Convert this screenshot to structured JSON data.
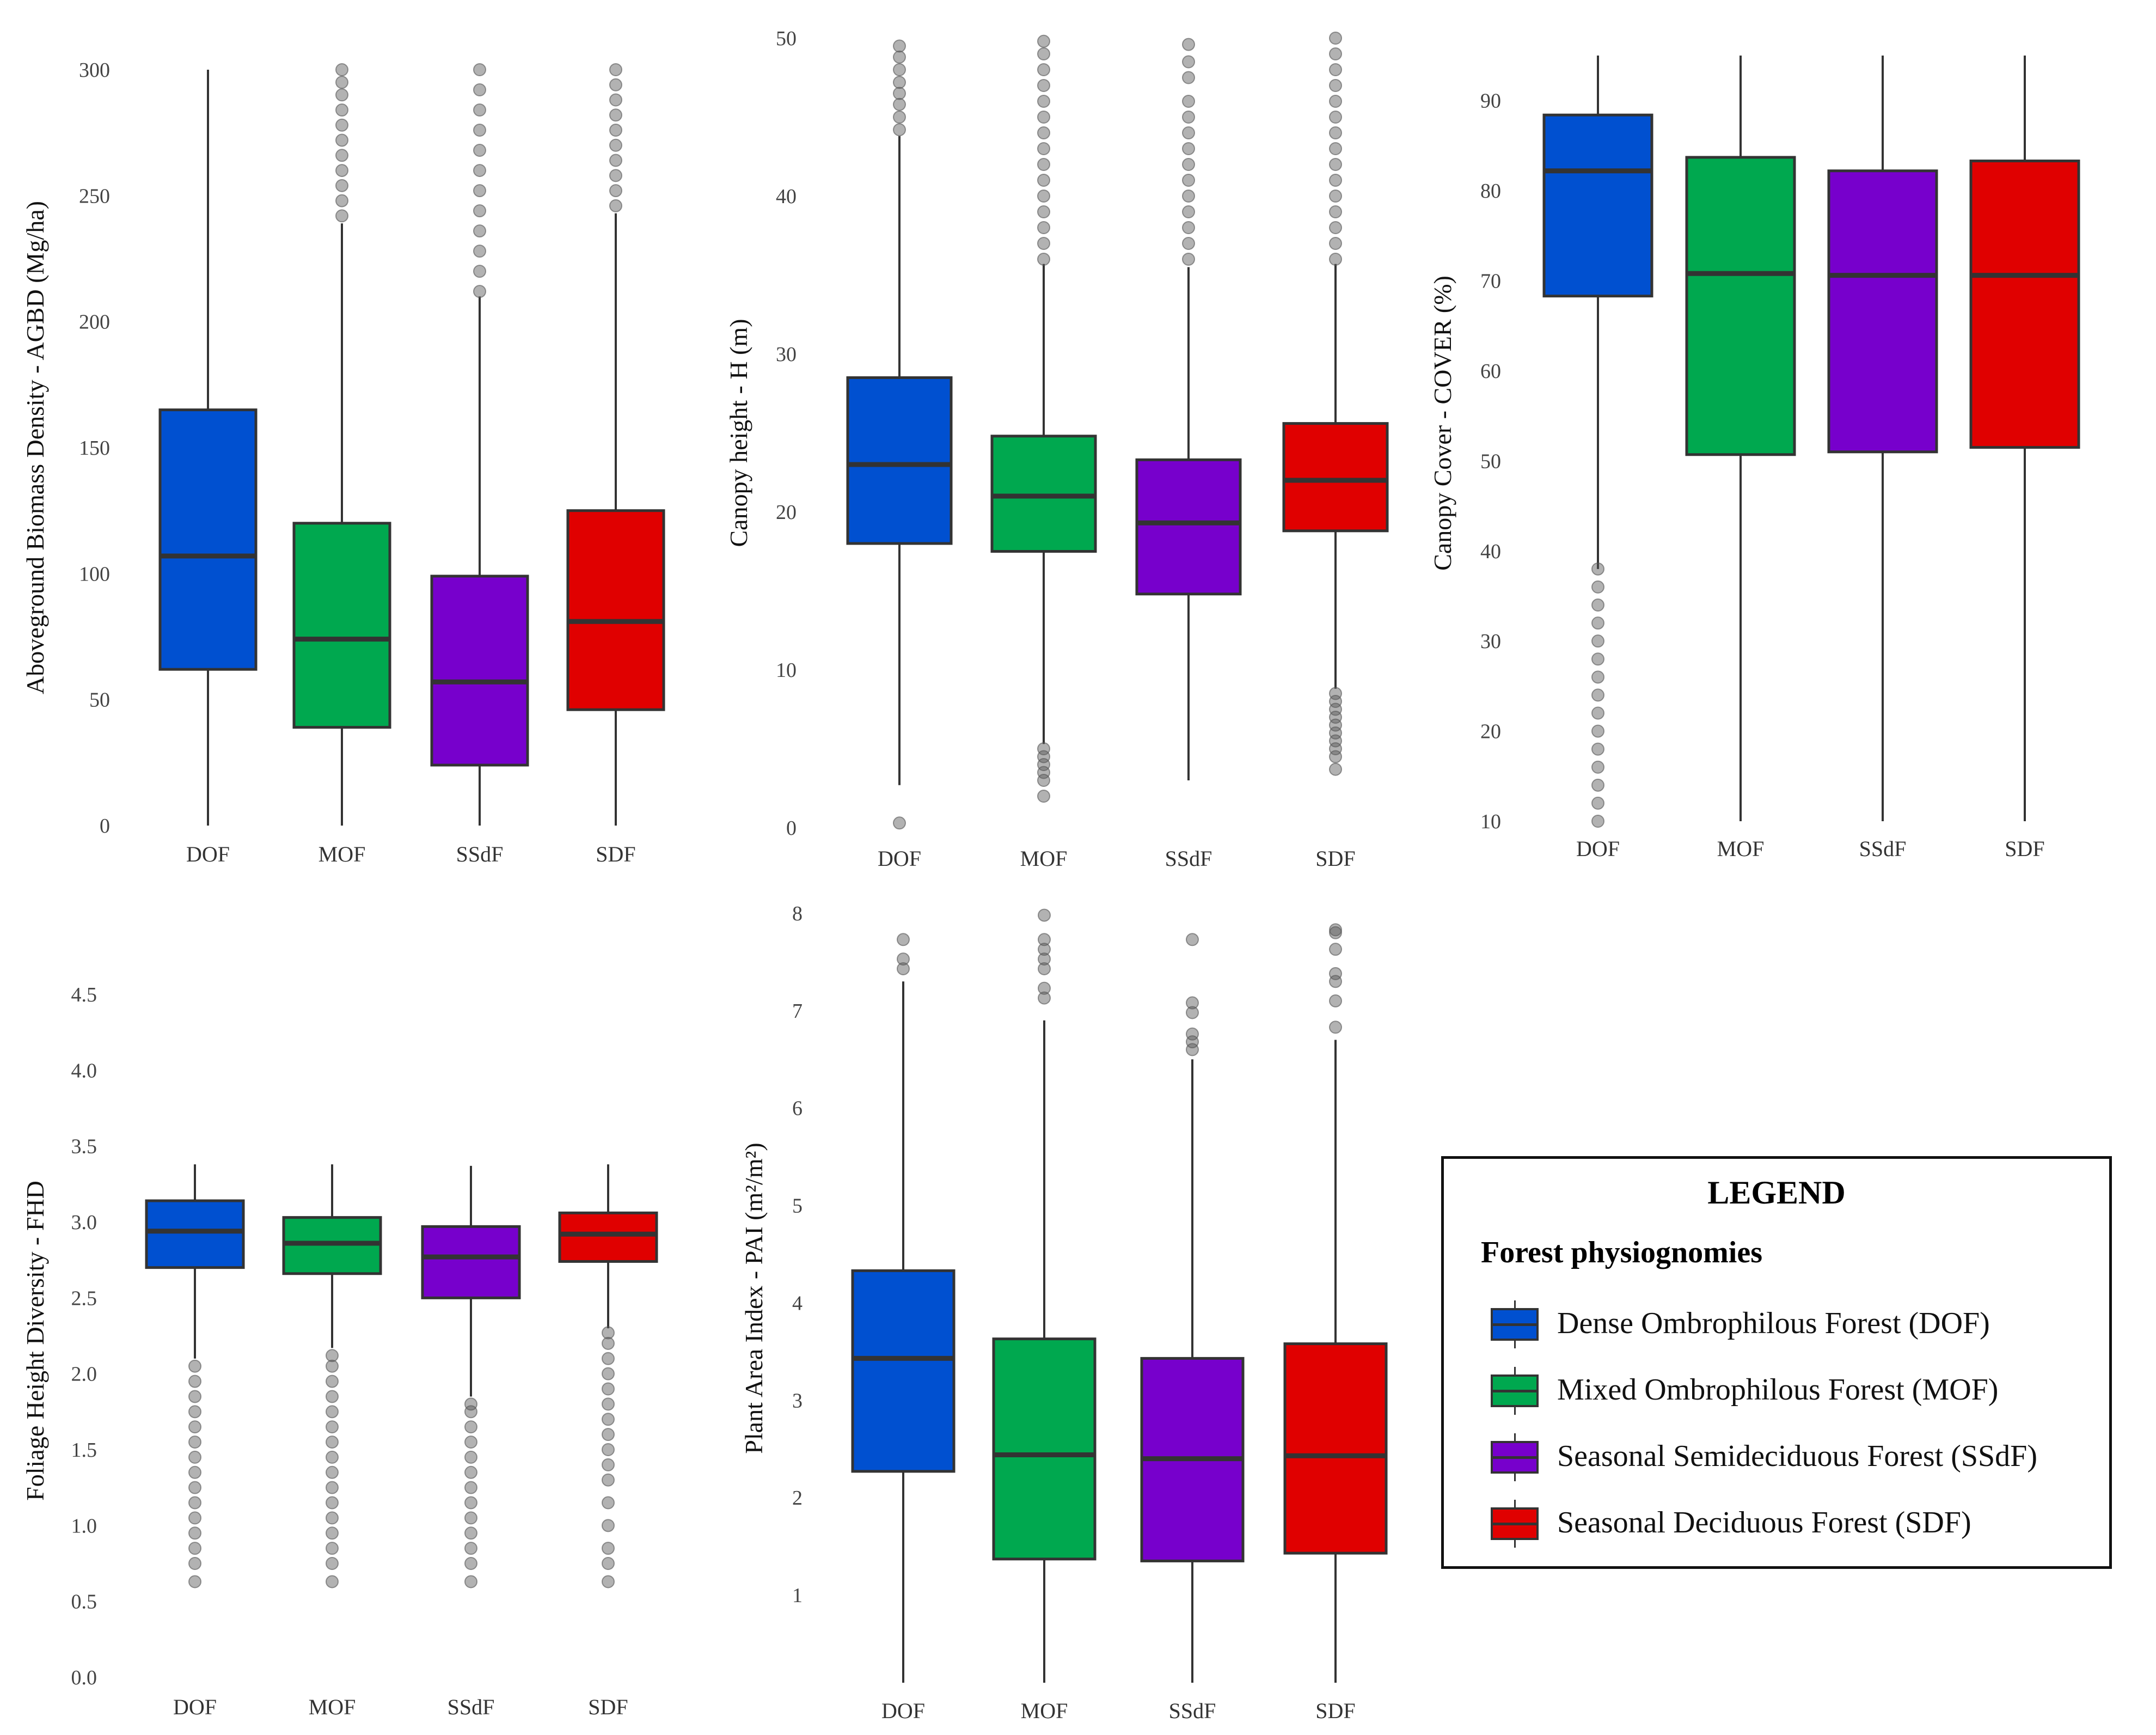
{
  "colors": {
    "DOF": "#0050d0",
    "MOF": "#00a84f",
    "SSdF": "#7700cc",
    "SDF": "#e00000",
    "outline": "#333333",
    "outlier": "#555555"
  },
  "chart_data": [
    {
      "type": "box",
      "ylabel": "Aboveground Biomass Density - AGBD (Mg/ha)",
      "xlabel": "",
      "categories": [
        "DOF",
        "MOF",
        "SSdF",
        "SDF"
      ],
      "yticks": [
        0,
        50,
        100,
        150,
        200,
        250,
        300
      ],
      "ylim": [
        0,
        300
      ],
      "boxes": [
        {
          "name": "DOF",
          "whisker_low": 0,
          "q1": 62,
          "median": 107,
          "q3": 165,
          "whisker_high": 300,
          "outliers": []
        },
        {
          "name": "MOF",
          "whisker_low": 0,
          "q1": 39,
          "median": 74,
          "q3": 120,
          "whisker_high": 239,
          "outliers": [
            242,
            248,
            254,
            260,
            266,
            272,
            278,
            284,
            290,
            295,
            300
          ]
        },
        {
          "name": "SSdF",
          "whisker_low": 0,
          "q1": 24,
          "median": 57,
          "q3": 99,
          "whisker_high": 210,
          "outliers": [
            212,
            220,
            228,
            236,
            244,
            252,
            260,
            268,
            276,
            284,
            292,
            300
          ]
        },
        {
          "name": "SDF",
          "whisker_low": 0,
          "q1": 46,
          "median": 81,
          "q3": 125,
          "whisker_high": 243,
          "outliers": [
            246,
            252,
            258,
            264,
            270,
            276,
            282,
            288,
            294,
            300
          ]
        }
      ]
    },
    {
      "type": "box",
      "ylabel": "Canopy height - H (m)",
      "xlabel": "",
      "categories": [
        "DOF",
        "MOF",
        "SSdF",
        "SDF"
      ],
      "yticks": [
        0,
        10,
        20,
        30,
        40,
        50
      ],
      "ylim": [
        0,
        50
      ],
      "boxes": [
        {
          "name": "DOF",
          "whisker_low": 2.7,
          "q1": 18.0,
          "median": 23.0,
          "q3": 28.5,
          "whisker_high": 43.8,
          "outliers": [
            0.3,
            44.2,
            45.0,
            45.8,
            46.5,
            47.2,
            48.0,
            48.8,
            49.5
          ]
        },
        {
          "name": "MOF",
          "whisker_low": 5.3,
          "q1": 17.5,
          "median": 21.0,
          "q3": 24.8,
          "whisker_high": 35.7,
          "outliers": [
            2.0,
            3.0,
            3.5,
            4.0,
            4.5,
            5.0,
            36.0,
            37.0,
            38.0,
            39.0,
            40.0,
            41.0,
            42.0,
            43.0,
            44.0,
            45.0,
            46.0,
            47.0,
            48.0,
            49.0,
            49.8
          ]
        },
        {
          "name": "SSdF",
          "whisker_low": 3.0,
          "q1": 14.8,
          "median": 19.3,
          "q3": 23.3,
          "whisker_high": 35.5,
          "outliers": [
            36.0,
            37.0,
            38.0,
            39.0,
            40.0,
            41.0,
            42.0,
            43.0,
            44.0,
            45.0,
            46.0,
            47.5,
            48.5,
            49.6
          ]
        },
        {
          "name": "SDF",
          "whisker_low": 8.8,
          "q1": 18.8,
          "median": 22.0,
          "q3": 25.6,
          "whisker_high": 35.7,
          "outliers": [
            3.7,
            4.5,
            5.0,
            5.5,
            6.0,
            6.5,
            7.0,
            7.5,
            8.0,
            8.5,
            36.0,
            37.0,
            38.0,
            39.0,
            40.0,
            41.0,
            42.0,
            43.0,
            44.0,
            45.0,
            46.0,
            47.0,
            48.0,
            49.0,
            50.0
          ]
        }
      ]
    },
    {
      "type": "box",
      "ylabel": "Canopy Cover - COVER (%)",
      "xlabel": "",
      "categories": [
        "DOF",
        "MOF",
        "SSdF",
        "SDF"
      ],
      "yticks": [
        10,
        20,
        30,
        40,
        50,
        60,
        70,
        80,
        90
      ],
      "ylim": [
        10,
        95
      ],
      "boxes": [
        {
          "name": "DOF",
          "whisker_low": 38,
          "q1": 68.3,
          "median": 82.2,
          "q3": 88.4,
          "whisker_high": 95,
          "outliers": [
            10,
            12,
            14,
            16,
            18,
            20,
            22,
            24,
            26,
            28,
            30,
            32,
            34,
            36,
            38
          ]
        },
        {
          "name": "MOF",
          "whisker_low": 10,
          "q1": 50.7,
          "median": 70.8,
          "q3": 83.7,
          "whisker_high": 95,
          "outliers": []
        },
        {
          "name": "SSdF",
          "whisker_low": 10,
          "q1": 51.0,
          "median": 70.6,
          "q3": 82.2,
          "whisker_high": 95,
          "outliers": []
        },
        {
          "name": "SDF",
          "whisker_low": 10,
          "q1": 51.5,
          "median": 70.6,
          "q3": 83.3,
          "whisker_high": 95,
          "outliers": []
        }
      ]
    },
    {
      "type": "box",
      "ylabel": "Foliage Height Diversity - FHD",
      "xlabel": "",
      "categories": [
        "DOF",
        "MOF",
        "SSdF",
        "SDF"
      ],
      "yticks": [
        0.0,
        0.5,
        1.0,
        1.5,
        2.0,
        2.5,
        3.0,
        3.5,
        4.0,
        4.5
      ],
      "ylim": [
        0,
        4.5
      ],
      "boxes": [
        {
          "name": "DOF",
          "whisker_low": 2.1,
          "q1": 2.7,
          "median": 2.94,
          "q3": 3.14,
          "whisker_high": 3.38,
          "outliers": [
            0.63,
            0.75,
            0.85,
            0.95,
            1.05,
            1.15,
            1.25,
            1.35,
            1.45,
            1.55,
            1.65,
            1.75,
            1.85,
            1.95,
            2.05
          ]
        },
        {
          "name": "MOF",
          "whisker_low": 2.17,
          "q1": 2.66,
          "median": 2.86,
          "q3": 3.03,
          "whisker_high": 3.38,
          "outliers": [
            0.63,
            0.75,
            0.85,
            0.95,
            1.05,
            1.15,
            1.25,
            1.35,
            1.45,
            1.55,
            1.65,
            1.75,
            1.85,
            1.95,
            2.05,
            2.12
          ]
        },
        {
          "name": "SSdF",
          "whisker_low": 1.85,
          "q1": 2.5,
          "median": 2.77,
          "q3": 2.97,
          "whisker_high": 3.37,
          "outliers": [
            0.63,
            0.75,
            0.85,
            0.95,
            1.05,
            1.15,
            1.25,
            1.35,
            1.45,
            1.55,
            1.65,
            1.75,
            1.8
          ]
        },
        {
          "name": "SDF",
          "whisker_low": 2.3,
          "q1": 2.74,
          "median": 2.92,
          "q3": 3.06,
          "whisker_high": 3.38,
          "outliers": [
            0.63,
            0.75,
            0.85,
            1.0,
            1.15,
            1.3,
            1.4,
            1.5,
            1.6,
            1.7,
            1.8,
            1.9,
            2.0,
            2.1,
            2.2,
            2.27
          ]
        }
      ]
    },
    {
      "type": "box",
      "ylabel": "Plant Area Index - PAI (m²/m²)",
      "xlabel": "",
      "categories": [
        "DOF",
        "MOF",
        "SSdF",
        "SDF"
      ],
      "yticks": [
        1,
        2,
        3,
        4,
        5,
        6,
        7,
        8
      ],
      "ylim": [
        0.1,
        8
      ],
      "boxes": [
        {
          "name": "DOF",
          "whisker_low": 0.1,
          "q1": 2.27,
          "median": 3.43,
          "q3": 4.33,
          "whisker_high": 7.3,
          "outliers": [
            7.43,
            7.53,
            7.73
          ]
        },
        {
          "name": "MOF",
          "whisker_low": 0.1,
          "q1": 1.37,
          "median": 2.44,
          "q3": 3.63,
          "whisker_high": 6.9,
          "outliers": [
            7.13,
            7.23,
            7.43,
            7.53,
            7.63,
            7.73,
            7.98
          ]
        },
        {
          "name": "SSdF",
          "whisker_low": 0.1,
          "q1": 1.35,
          "median": 2.4,
          "q3": 3.43,
          "whisker_high": 6.5,
          "outliers": [
            6.6,
            6.68,
            6.76,
            6.98,
            7.08,
            7.73
          ]
        },
        {
          "name": "SDF",
          "whisker_low": 0.1,
          "q1": 1.43,
          "median": 2.43,
          "q3": 3.58,
          "whisker_high": 6.7,
          "outliers": [
            6.83,
            7.1,
            7.3,
            7.38,
            7.63,
            7.8,
            7.83
          ]
        }
      ]
    }
  ],
  "legend": {
    "title": "LEGEND",
    "subtitle": "Forest physiognomies",
    "items": [
      {
        "key": "DOF",
        "label": "Dense Ombrophilous Forest (DOF)"
      },
      {
        "key": "MOF",
        "label": "Mixed Ombrophilous Forest (MOF)"
      },
      {
        "key": "SSdF",
        "label": "Seasonal Semideciduous Forest (SSdF)"
      },
      {
        "key": "SDF",
        "label": "Seasonal Deciduous Forest (SDF)"
      }
    ]
  }
}
